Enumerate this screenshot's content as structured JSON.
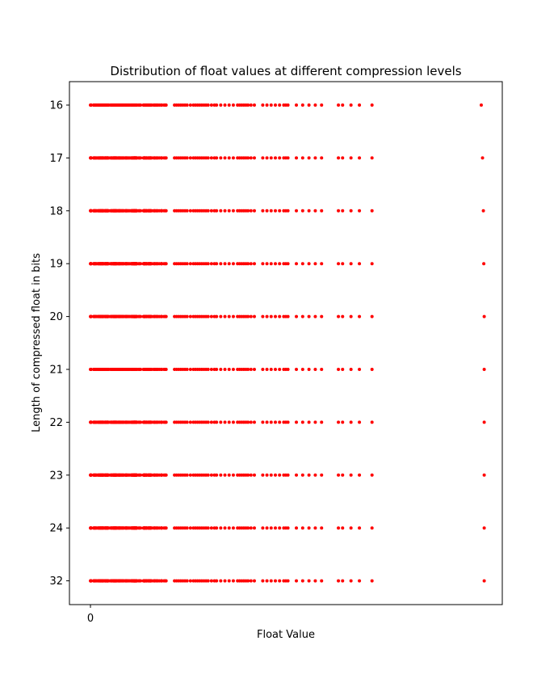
{
  "chart_data": {
    "type": "scatter",
    "title": "Distribution of float values at different compression levels",
    "xlabel": "Float Value",
    "ylabel": "Length of compressed float in bits",
    "x_tick_labels": [
      "0"
    ],
    "categories": [
      "16",
      "17",
      "18",
      "19",
      "20",
      "21",
      "22",
      "23",
      "24",
      "32"
    ],
    "grid": false,
    "legend": "none",
    "marker_color": "#ff0000",
    "axes_color": "#000000",
    "x_dense_range": [
      0.0,
      1.7
    ],
    "x_sparse_points": [
      1.75,
      1.78,
      1.8,
      2.0,
      2.05,
      2.1,
      2.15,
      2.2,
      2.25,
      2.3,
      2.38,
      2.45,
      2.5,
      2.55,
      2.6,
      2.65,
      2.7,
      2.75,
      2.8,
      2.88,
      2.95,
      3.0,
      3.1,
      3.2,
      3.3,
      3.4,
      3.5,
      3.55,
      3.6,
      3.65,
      3.7,
      3.75,
      3.82,
      3.9,
      4.1,
      4.2,
      4.3,
      4.4,
      4.5,
      4.6,
      4.65,
      4.7,
      4.9,
      5.05,
      5.2,
      5.35,
      5.5,
      5.9,
      6.0,
      6.2,
      6.4,
      6.7
    ],
    "x_outliers": [
      9.3,
      9.33,
      9.35,
      9.36,
      9.37,
      9.37,
      9.37,
      9.37,
      9.37,
      9.37
    ],
    "xlim": [
      -0.5,
      9.8
    ]
  }
}
